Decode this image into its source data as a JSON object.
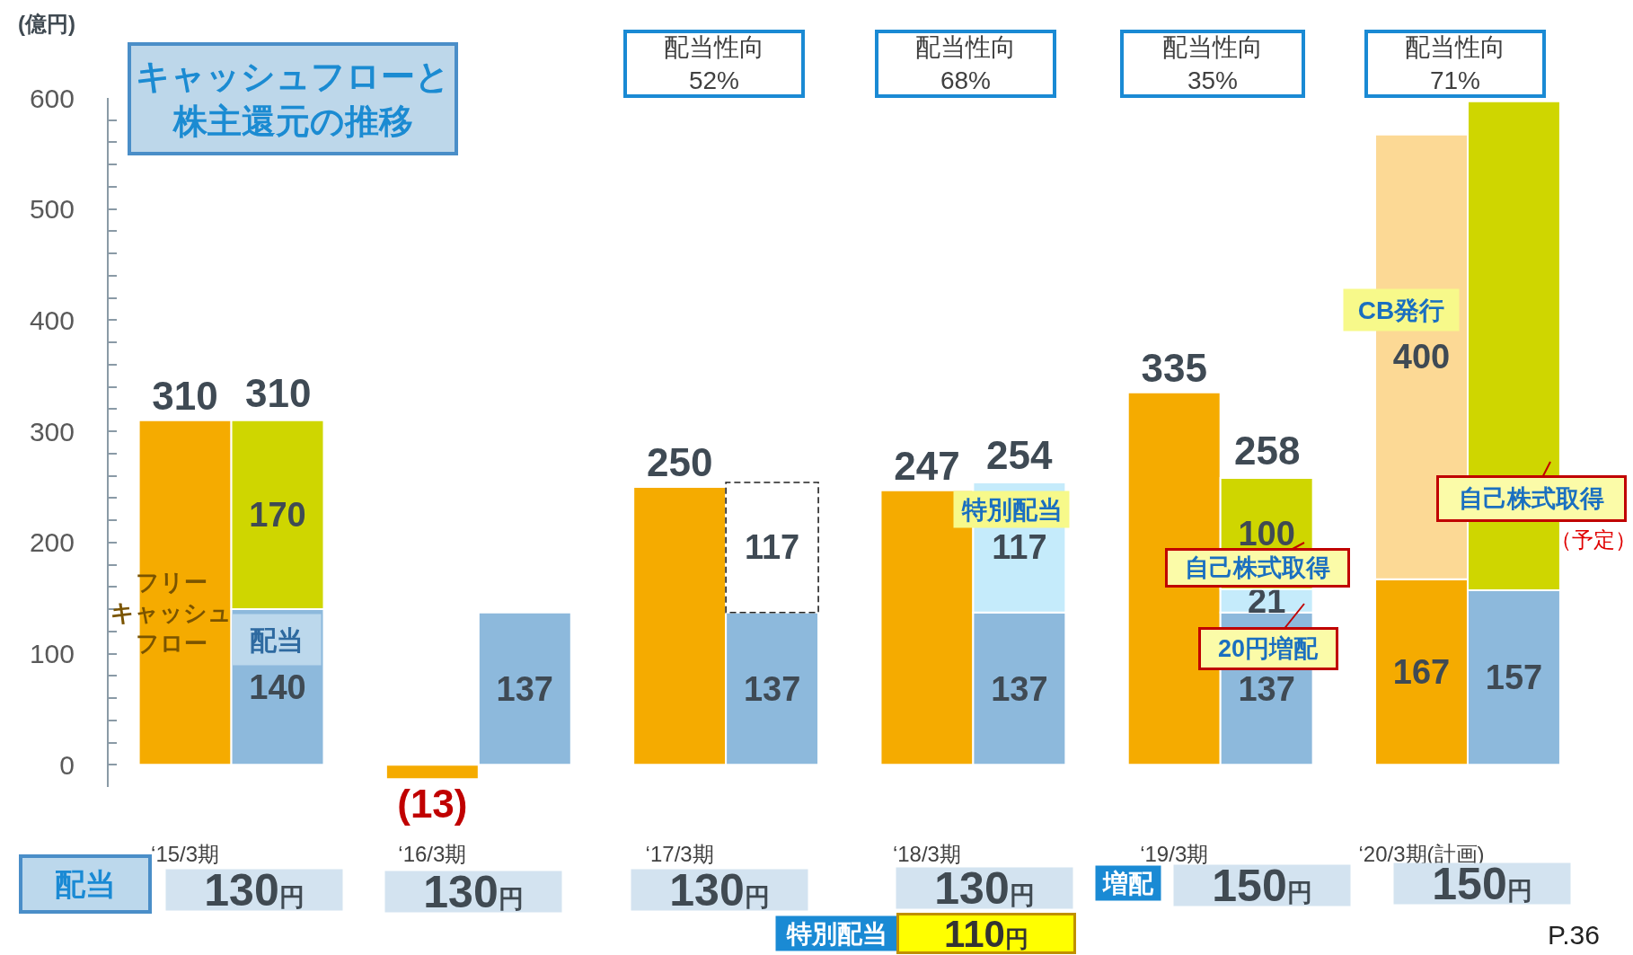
{
  "chart_data": {
    "type": "bar",
    "title": "キャッシュフローと株主還元の推移",
    "ylabel": "(億円)",
    "categories": [
      "‘15/3期",
      null,
      "‘16/3期",
      null,
      "‘17/3期",
      null,
      "‘18/3期",
      null,
      "‘19/3期",
      null,
      "‘20/3期(計画)",
      null
    ],
    "stacked": true,
    "series": [
      {
        "color": "#f5ab00",
        "values": [
          310,
          null,
          -13,
          null,
          250,
          null,
          247,
          null,
          335,
          null,
          167,
          null
        ],
        "value_labels": [
          "310",
          null,
          "(13)",
          null,
          "250",
          null,
          "247",
          null,
          "335",
          null,
          "167",
          null
        ]
      },
      {
        "color": "#fcd995",
        "values": [
          null,
          null,
          null,
          null,
          null,
          null,
          null,
          null,
          null,
          null,
          400,
          null
        ],
        "value_labels": [
          null,
          null,
          null,
          null,
          null,
          null,
          null,
          null,
          null,
          null,
          "400",
          null
        ]
      },
      {
        "color": "#8db9dc",
        "values": [
          null,
          140,
          null,
          137,
          null,
          137,
          null,
          137,
          null,
          137,
          null,
          157
        ],
        "value_labels": [
          null,
          "140",
          null,
          "137",
          null,
          "137",
          null,
          "137",
          null,
          "137",
          null,
          "157"
        ]
      },
      {
        "color": "#c5ebfb",
        "values": [
          null,
          null,
          null,
          null,
          null,
          null,
          null,
          117,
          null,
          21,
          null,
          null
        ],
        "value_labels": [
          null,
          null,
          null,
          null,
          null,
          null,
          null,
          "117",
          null,
          "21",
          null,
          null
        ]
      },
      {
        "color": "#cfd600",
        "values": [
          null,
          170,
          null,
          null,
          null,
          null,
          null,
          null,
          null,
          100,
          null,
          440
        ],
        "value_labels": [
          null,
          "170",
          null,
          null,
          null,
          null,
          null,
          null,
          null,
          "100",
          null,
          null
        ]
      },
      {
        "color": "#ffffff",
        "line_style": "dashed",
        "values": [
          null,
          null,
          null,
          null,
          null,
          117,
          null,
          null,
          null,
          null,
          null,
          null
        ],
        "value_labels": [
          null,
          null,
          null,
          null,
          null,
          "117",
          null,
          null,
          null,
          null,
          null,
          null
        ]
      }
    ],
    "totals": [
      null,
      "310",
      null,
      null,
      null,
      null,
      null,
      "254",
      null,
      "258",
      null,
      null
    ],
    "ylim": [
      -20,
      600
    ],
    "yticks": [
      0,
      {
        "value": 20,
        "label": null
      },
      {
        "value": 40,
        "label": null
      },
      {
        "value": 60,
        "label": null
      },
      {
        "value": 80,
        "label": null
      },
      100,
      {
        "value": 120,
        "label": null
      },
      {
        "value": 140,
        "label": null
      },
      {
        "value": 160,
        "label": null
      },
      {
        "value": 180,
        "label": null
      },
      200,
      {
        "value": 220,
        "label": null
      },
      {
        "value": 240,
        "label": null
      },
      {
        "value": 260,
        "label": null
      },
      {
        "value": 280,
        "label": null
      },
      300,
      {
        "value": 320,
        "label": null
      },
      {
        "value": 340,
        "label": null
      },
      {
        "value": 360,
        "label": null
      },
      {
        "value": 380,
        "label": null
      },
      400,
      {
        "value": 420,
        "label": null
      },
      {
        "value": 440,
        "label": null
      },
      {
        "value": 460,
        "label": null
      },
      {
        "value": 480,
        "label": null
      },
      500,
      {
        "value": 520,
        "label": null
      },
      {
        "value": 540,
        "label": null
      },
      {
        "value": 560,
        "label": null
      },
      {
        "value": 580,
        "label": null
      },
      600
    ],
    "annotations": [
      "フリーキャッシュフロー",
      "配当",
      "特別配当",
      "自己株式取得",
      "20円増配",
      "CB発行",
      "自己株式取得",
      "（予定）",
      "配当性向\n52%",
      "配当性向\n68%",
      "配当性向\n35%",
      "配当性向\n71%",
      "配当",
      "130円",
      "130円",
      "130円",
      "130円",
      "150円",
      "150円",
      "特別配当",
      "110円",
      "増配",
      "P.36"
    ]
  }
}
